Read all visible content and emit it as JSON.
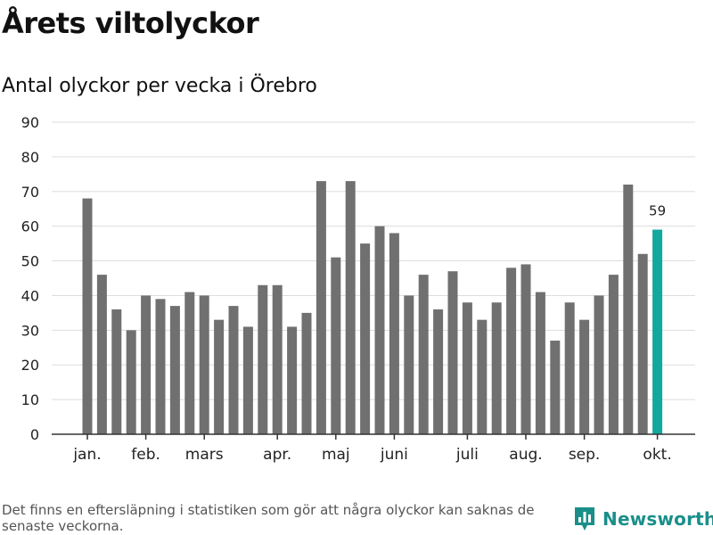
{
  "title": "Årets viltolyckor",
  "subtitle": "Antal olyckor per vecka i Örebro",
  "footnote": "Det finns en eftersläpning i statistiken som gör att några olyckor kan saknas de senaste veckorna.",
  "brand": {
    "name": "Newsworthy",
    "icon": "bar-chart-speech-bubble-icon"
  },
  "colors": {
    "bar": "#707070",
    "highlight": "#13a89e",
    "grid": "#dddddd",
    "axis": "#333333",
    "brand": "#1a8f8a"
  },
  "chart_data": {
    "type": "bar",
    "title": "Årets viltolyckor",
    "subtitle": "Antal olyckor per vecka i Örebro",
    "xlabel": "",
    "ylabel": "",
    "ylim": [
      0,
      90
    ],
    "yticks": [
      0,
      10,
      20,
      30,
      40,
      50,
      60,
      70,
      80,
      90
    ],
    "grid": true,
    "values": [
      68,
      46,
      36,
      30,
      40,
      39,
      37,
      41,
      40,
      33,
      37,
      31,
      43,
      43,
      31,
      35,
      73,
      51,
      73,
      55,
      60,
      58,
      40,
      46,
      36,
      47,
      38,
      33,
      38,
      48,
      49,
      41,
      27,
      38,
      33,
      40,
      46,
      72,
      52,
      59
    ],
    "highlight_index": 39,
    "highlight_label": "59",
    "month_labels": [
      {
        "label": "jan.",
        "bar_index": 0
      },
      {
        "label": "feb.",
        "bar_index": 4
      },
      {
        "label": "mars",
        "bar_index": 8
      },
      {
        "label": "apr.",
        "bar_index": 13
      },
      {
        "label": "maj",
        "bar_index": 17
      },
      {
        "label": "juni",
        "bar_index": 21
      },
      {
        "label": "juli",
        "bar_index": 26
      },
      {
        "label": "aug.",
        "bar_index": 30
      },
      {
        "label": "sep.",
        "bar_index": 34
      },
      {
        "label": "okt.",
        "bar_index": 39
      }
    ]
  }
}
